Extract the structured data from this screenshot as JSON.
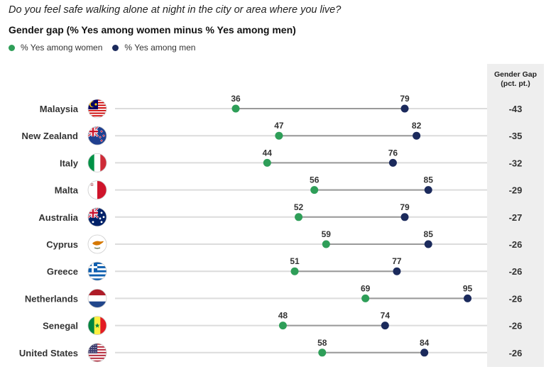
{
  "question": "Do you feel safe walking alone at night in the city or area where you live?",
  "title": "Gender gap (% Yes among women minus % Yes among men)",
  "legend": {
    "women": "% Yes among women",
    "men": "% Yes among men"
  },
  "colors": {
    "women": "#2e9e58",
    "men": "#1b2a5c",
    "connector": "#9a9a9a",
    "gap_column_bg": "#eeeeee"
  },
  "gap_header": {
    "line1": "Gender Gap",
    "line2": "(pct. pt.)"
  },
  "chart_data": {
    "type": "dumbbell",
    "title": "Gender gap (% Yes among women minus % Yes among men)",
    "categories": [
      "Malaysia",
      "New Zealand",
      "Italy",
      "Malta",
      "Australia",
      "Cyprus",
      "Greece",
      "Netherlands",
      "Senegal",
      "United States"
    ],
    "series": [
      {
        "name": "% Yes among women",
        "values": [
          36,
          47,
          44,
          56,
          52,
          59,
          51,
          69,
          48,
          58
        ]
      },
      {
        "name": "% Yes among men",
        "values": [
          79,
          82,
          76,
          85,
          79,
          85,
          77,
          95,
          74,
          84
        ]
      }
    ],
    "gap": [
      -43,
      -35,
      -32,
      -29,
      -27,
      -26,
      -26,
      -26,
      -26,
      -26
    ],
    "gap_labels": [
      "-43",
      "-35",
      "-32",
      "-29",
      "-27",
      "-26",
      "-26",
      "-26",
      "-26",
      "-26"
    ],
    "flags": [
      "flag-malaysia",
      "flag-new-zealand",
      "flag-italy",
      "flag-malta",
      "flag-australia",
      "flag-cyprus",
      "flag-greece",
      "flag-netherlands",
      "flag-senegal",
      "flag-united-states"
    ],
    "legend_position": "top-left"
  }
}
